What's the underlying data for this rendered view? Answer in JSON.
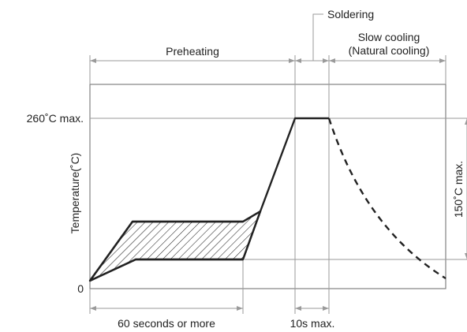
{
  "labels": {
    "soldering": "Soldering",
    "slow_cooling": "Slow cooling",
    "natural_cooling": "(Natural cooling)",
    "preheating": "Preheating",
    "peak_temp": "260˚C max.",
    "zero": "0",
    "y_axis": "Temperature(˚C)",
    "cooling_drop": "150˚C max.",
    "preheat_time": "60 seconds or more",
    "solder_time": "10s max."
  },
  "colors": {
    "profile_line": "#222222",
    "guide_line": "#9a9a9a",
    "frame": "#777777"
  }
}
